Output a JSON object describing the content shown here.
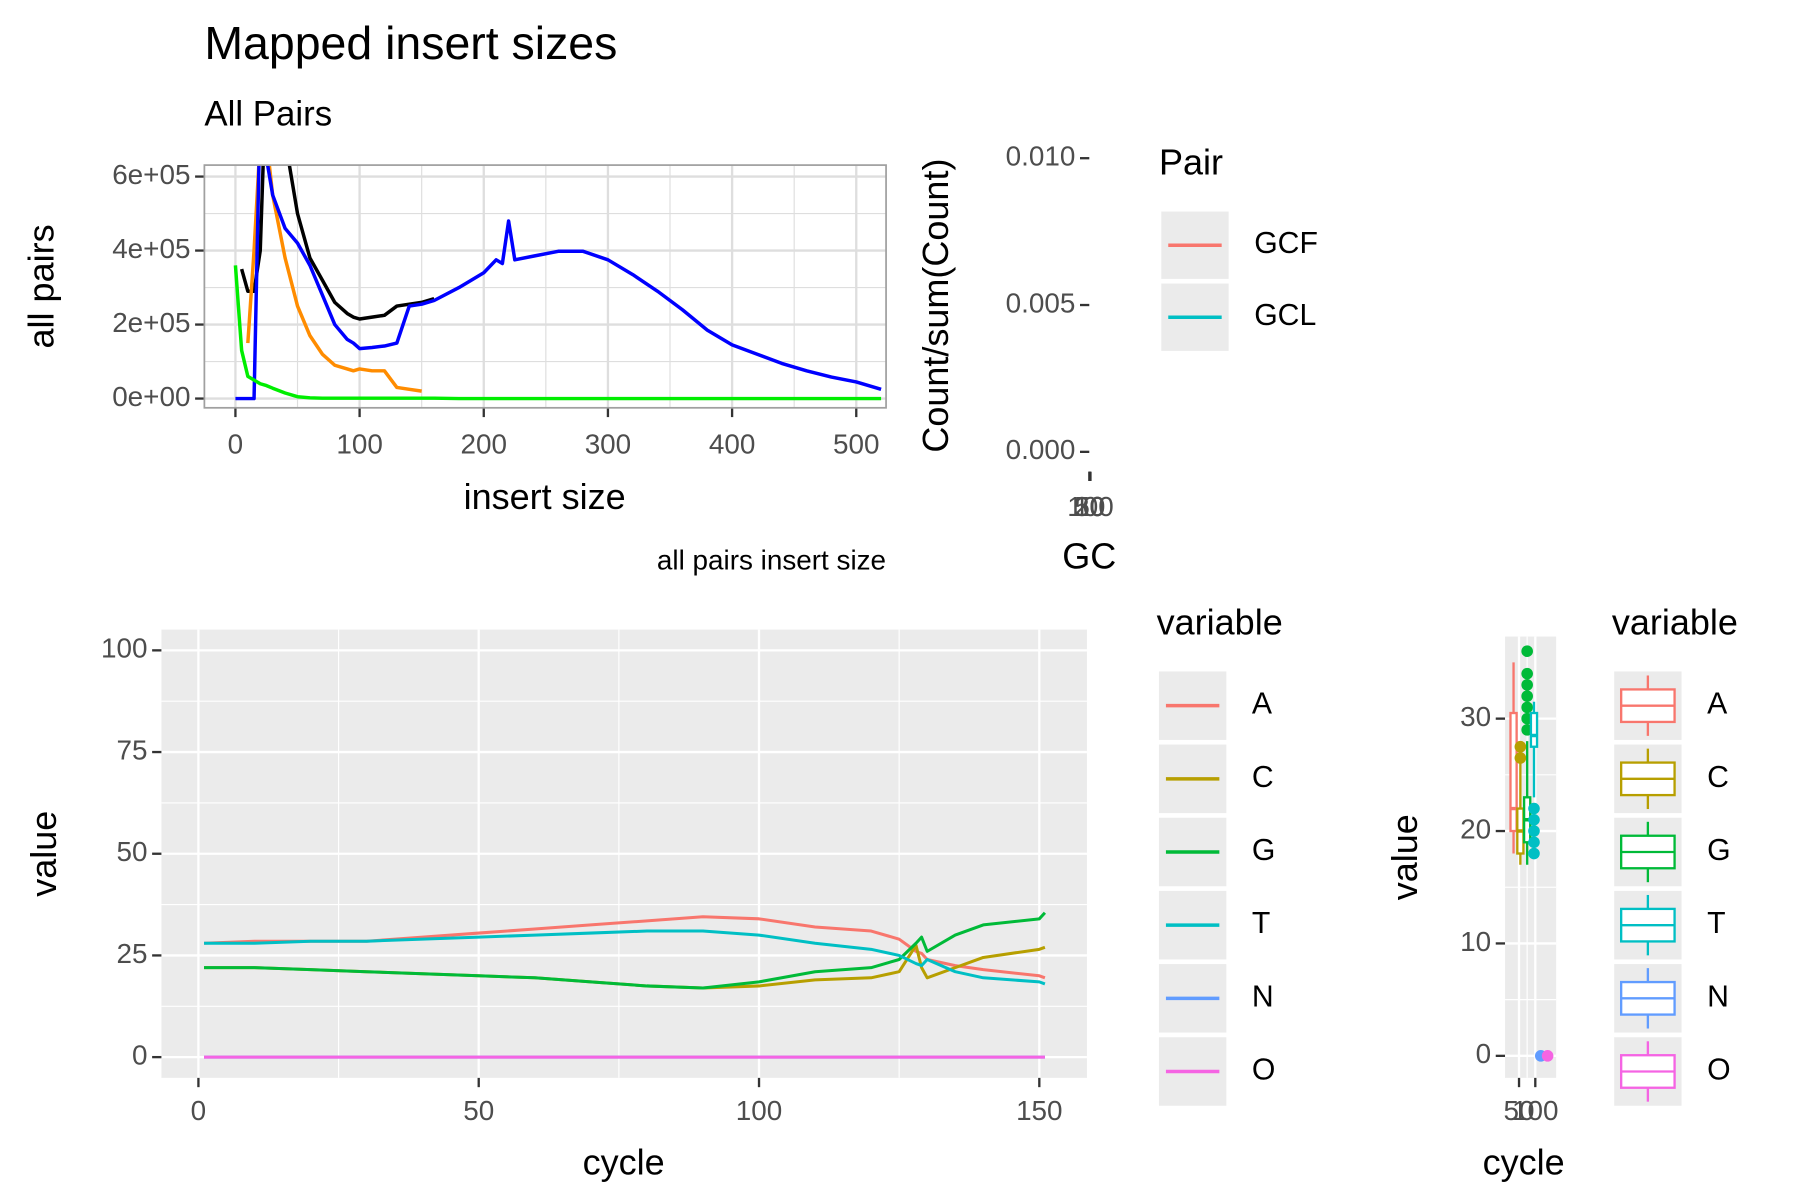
{
  "chart_data": [
    {
      "type": "line",
      "title": "Mapped insert sizes",
      "subtitle": "All Pairs",
      "x_label": "insert size",
      "y_label": "all pairs",
      "caption": "all pairs insert size",
      "x": [
        0,
        5,
        10,
        15,
        20,
        25,
        30,
        40,
        50,
        60,
        70,
        80,
        90,
        95,
        100,
        110,
        120,
        130,
        140,
        150,
        160,
        180,
        200,
        210,
        215,
        220,
        225,
        240,
        260,
        280,
        300,
        320,
        340,
        360,
        380,
        400,
        420,
        440,
        460,
        480,
        500,
        520
      ],
      "series": [
        {
          "color": "#000000",
          "values": [
            null,
            350000,
            290000,
            290000,
            400000,
            900000,
            900000,
            700000,
            500000,
            380000,
            320000,
            260000,
            230000,
            220000,
            215000,
            220000,
            225000,
            250000,
            255000,
            260000,
            270000,
            null,
            null,
            null,
            null,
            null,
            null,
            null,
            null,
            null,
            null,
            null,
            null,
            null,
            null,
            null,
            null,
            null,
            null,
            null,
            null,
            null
          ]
        },
        {
          "color": "#ff8c00",
          "values": [
            null,
            null,
            150000,
            400000,
            700000,
            700000,
            550000,
            380000,
            250000,
            170000,
            120000,
            90000,
            80000,
            75000,
            80000,
            75000,
            75000,
            30000,
            25000,
            20000,
            null,
            null,
            null,
            null,
            null,
            null,
            null,
            null,
            null,
            null,
            null,
            null,
            null,
            null,
            null,
            null,
            null,
            null,
            null,
            null,
            null,
            null
          ]
        },
        {
          "color": "#0000ff",
          "values": [
            0,
            0,
            0,
            0,
            800000,
            650000,
            550000,
            460000,
            420000,
            360000,
            280000,
            200000,
            160000,
            150000,
            135000,
            138000,
            142000,
            150000,
            250000,
            255000,
            265000,
            300000,
            340000,
            375000,
            365000,
            480000,
            375000,
            385000,
            398000,
            398000,
            375000,
            335000,
            290000,
            240000,
            185000,
            145000,
            120000,
            95000,
            75000,
            58000,
            45000,
            25000
          ]
        },
        {
          "color": "#00ee00",
          "values": [
            360000,
            130000,
            60000,
            50000,
            40000,
            35000,
            28000,
            15000,
            5000,
            2000,
            1000,
            1000,
            1000,
            1000,
            1000,
            1000,
            1000,
            1000,
            1000,
            1000,
            1000,
            0,
            0,
            0,
            0,
            0,
            0,
            0,
            0,
            0,
            0,
            0,
            0,
            0,
            0,
            0,
            0,
            0,
            0,
            0,
            0,
            0
          ]
        }
      ],
      "xlim": [
        -25,
        524
      ],
      "xticks": [
        0,
        100,
        200,
        300,
        400,
        500
      ],
      "ylim": [
        -25000,
        631000
      ],
      "yticks": [
        {
          "value": 0,
          "label": "0e+00"
        },
        {
          "value": 200000,
          "label": "2e+05"
        },
        {
          "value": 400000,
          "label": "4e+05"
        },
        {
          "value": 600000,
          "label": "6e+05"
        }
      ],
      "grid": true
    },
    {
      "type": "line",
      "x_label": "GC",
      "y_label": "Count/sum(Count)",
      "legend_title": "Pair",
      "x": [],
      "series": [
        {
          "name": "GCF",
          "color": "#F8766D",
          "values": []
        },
        {
          "name": "GCL",
          "color": "#00BFC4",
          "values": []
        }
      ],
      "xlim": [
        0,
        100
      ],
      "xticks": [
        10,
        20,
        50,
        100
      ],
      "ylim": [
        -0.00028,
        0.01024
      ],
      "yticks": [
        {
          "value": 0,
          "label": "0.000"
        },
        {
          "value": 0.005,
          "label": "0.005"
        },
        {
          "value": 0.01,
          "label": "0.010"
        }
      ],
      "grid": false
    },
    {
      "type": "line",
      "x_label": "cycle",
      "y_label": "value",
      "legend_title": "variable",
      "x": [
        1,
        10,
        20,
        30,
        40,
        50,
        60,
        70,
        80,
        90,
        100,
        110,
        120,
        125,
        128,
        129,
        130,
        135,
        140,
        150,
        151
      ],
      "series": [
        {
          "name": "A",
          "color": "#F8766D",
          "values": [
            28,
            28.5,
            28.5,
            28.5,
            29.5,
            30.5,
            31.5,
            32.5,
            33.5,
            34.5,
            34,
            32,
            31,
            29,
            26,
            25.5,
            24,
            22.5,
            21.5,
            20,
            19.5
          ]
        },
        {
          "name": "C",
          "color": "#B79F00",
          "values": [
            22,
            22,
            21.5,
            21,
            20.5,
            20,
            19.5,
            18.5,
            17.5,
            17,
            17.5,
            19,
            19.5,
            21,
            27.5,
            22,
            19.5,
            22,
            24.5,
            26.5,
            27
          ]
        },
        {
          "name": "G",
          "color": "#00BA38",
          "values": [
            22,
            22,
            21.5,
            21,
            20.5,
            20,
            19.5,
            18.5,
            17.5,
            17,
            18.5,
            21,
            22,
            24,
            28,
            29.5,
            26,
            30,
            32.5,
            34,
            35.5
          ]
        },
        {
          "name": "T",
          "color": "#00BFC4",
          "values": [
            28,
            28,
            28.5,
            28.5,
            29,
            29.5,
            30,
            30.5,
            31,
            31,
            30,
            28,
            26.5,
            25,
            23,
            22.5,
            24,
            21,
            19.5,
            18.5,
            18
          ]
        },
        {
          "name": "N",
          "color": "#619CFF",
          "values": [
            0,
            0,
            0,
            0,
            0,
            0,
            0,
            0,
            0,
            0,
            0,
            0,
            0,
            0,
            0,
            0,
            0,
            0,
            0,
            0,
            0
          ]
        },
        {
          "name": "O",
          "color": "#F564E3",
          "values": [
            0,
            0,
            0,
            0,
            0,
            0,
            0,
            0,
            0,
            0,
            0,
            0,
            0,
            0,
            0,
            0,
            0,
            0,
            0,
            0,
            0
          ]
        }
      ],
      "xlim": [
        -6.6,
        158.5
      ],
      "xticks": [
        0,
        50,
        100,
        150
      ],
      "ylim": [
        -5.1,
        105.1
      ],
      "yticks": [
        0,
        25,
        50,
        75,
        100
      ],
      "grid": true
    },
    {
      "type": "box",
      "x_label": "cycle",
      "y_label": "value",
      "legend_title": "variable",
      "series": [
        {
          "name": "A",
          "color": "#F8766D",
          "box": [
            18,
            20,
            22,
            30.5,
            35
          ],
          "outliers": []
        },
        {
          "name": "C",
          "color": "#B79F00",
          "box": [
            17,
            18,
            20,
            22,
            28
          ],
          "outliers": [
            26.5,
            27.5
          ]
        },
        {
          "name": "G",
          "color": "#00BA38",
          "box": [
            17,
            19,
            21,
            23,
            28
          ],
          "outliers": [
            29,
            30,
            31,
            32,
            33,
            34,
            36
          ]
        },
        {
          "name": "T",
          "color": "#00BFC4",
          "box": [
            23,
            27.5,
            28.5,
            30.5,
            31.5
          ],
          "outliers": [
            18,
            19,
            20,
            21,
            22
          ]
        },
        {
          "name": "N",
          "color": "#619CFF",
          "box": [
            0,
            0,
            0,
            0,
            0
          ],
          "outliers": []
        },
        {
          "name": "O",
          "color": "#F564E3",
          "box": [
            0,
            0,
            0,
            0,
            0
          ],
          "outliers": []
        }
      ],
      "xlim": [
        7,
        164
      ],
      "xticks": [
        50,
        100
      ],
      "ylim": [
        -1.96,
        37.3
      ],
      "yticks": [
        0,
        10,
        20,
        30
      ],
      "grid": true
    }
  ]
}
